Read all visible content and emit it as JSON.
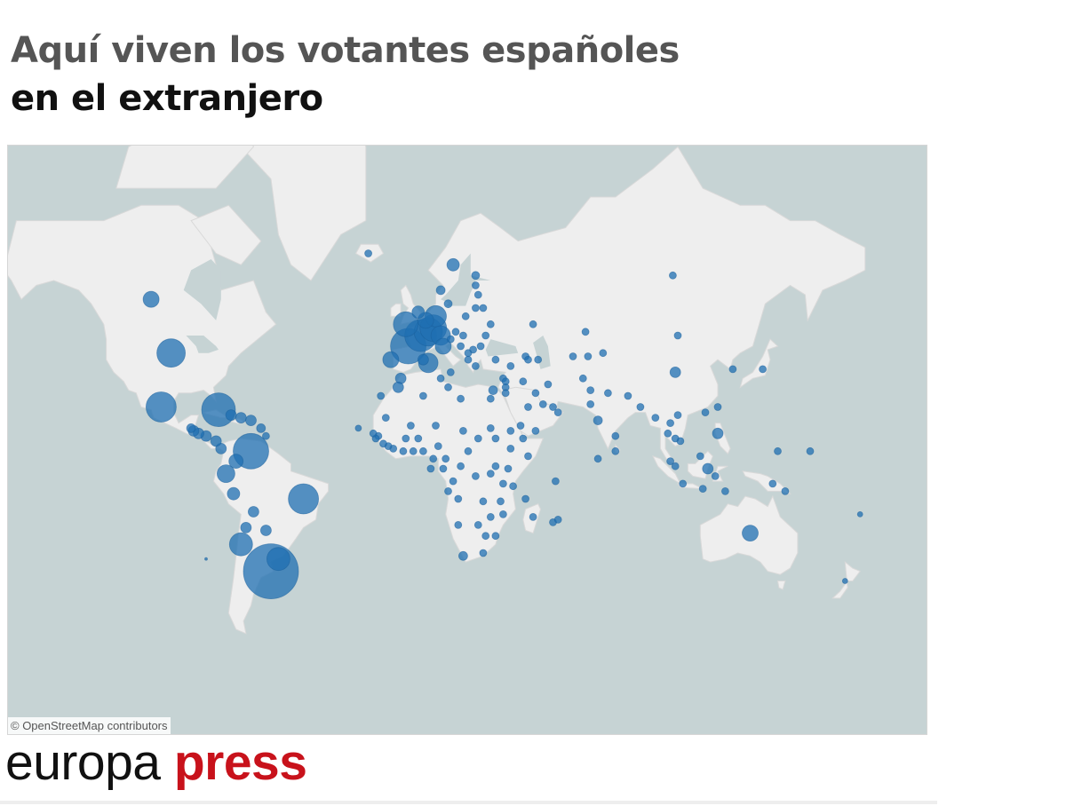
{
  "header": {
    "title_line1": "Aquí viven los votantes españoles",
    "title_line2": "en el extranjero"
  },
  "map": {
    "attribution": "© OpenStreetMap contributors",
    "colors": {
      "water": "#c6d3d4",
      "land": "#eeeeee",
      "bubble": "#1f6fb2"
    },
    "bubbles": [
      {
        "lon": -84,
        "lat": -34,
        "size": 3
      },
      {
        "lon": -58,
        "lat": -38,
        "size": 62
      },
      {
        "lon": -55,
        "lat": -34,
        "size": 26
      },
      {
        "lon": -70,
        "lat": -29,
        "size": 26
      },
      {
        "lon": -68,
        "lat": -23,
        "size": 12
      },
      {
        "lon": -60,
        "lat": -24,
        "size": 12
      },
      {
        "lon": -65,
        "lat": -17,
        "size": 12
      },
      {
        "lon": -73,
        "lat": -10,
        "size": 14
      },
      {
        "lon": -76,
        "lat": -2,
        "size": 20
      },
      {
        "lon": -72,
        "lat": 3,
        "size": 16
      },
      {
        "lon": -66,
        "lat": 7,
        "size": 40
      },
      {
        "lon": -45,
        "lat": -12,
        "size": 34
      },
      {
        "lon": -78,
        "lat": 8,
        "size": 12
      },
      {
        "lon": -80,
        "lat": 11,
        "size": 12
      },
      {
        "lon": -84,
        "lat": 13,
        "size": 12
      },
      {
        "lon": -87,
        "lat": 14,
        "size": 12
      },
      {
        "lon": -89,
        "lat": 15,
        "size": 12
      },
      {
        "lon": -90,
        "lat": 16,
        "size": 10
      },
      {
        "lon": -79,
        "lat": 23,
        "size": 38
      },
      {
        "lon": -74,
        "lat": 21,
        "size": 12
      },
      {
        "lon": -70,
        "lat": 20,
        "size": 12
      },
      {
        "lon": -66,
        "lat": 19,
        "size": 12
      },
      {
        "lon": -62,
        "lat": 16,
        "size": 10
      },
      {
        "lon": -60,
        "lat": 13,
        "size": 8
      },
      {
        "lon": -102,
        "lat": 24,
        "size": 34
      },
      {
        "lon": -98,
        "lat": 42,
        "size": 32
      },
      {
        "lon": -106,
        "lat": 56,
        "size": 18
      },
      {
        "lon": -19,
        "lat": 65,
        "size": 8
      },
      {
        "lon": -4,
        "lat": 50,
        "size": 28
      },
      {
        "lon": -3,
        "lat": 44,
        "size": 40
      },
      {
        "lon": 2,
        "lat": 47,
        "size": 36
      },
      {
        "lon": 5,
        "lat": 48,
        "size": 32
      },
      {
        "lon": 7,
        "lat": 49,
        "size": 30
      },
      {
        "lon": 10,
        "lat": 47,
        "size": 22
      },
      {
        "lon": 8,
        "lat": 52,
        "size": 24
      },
      {
        "lon": 1,
        "lat": 53,
        "size": 14
      },
      {
        "lon": 4,
        "lat": 51,
        "size": 18
      },
      {
        "lon": 11,
        "lat": 44,
        "size": 18
      },
      {
        "lon": 5,
        "lat": 39,
        "size": 22
      },
      {
        "lon": -10,
        "lat": 40,
        "size": 18
      },
      {
        "lon": 3,
        "lat": 40,
        "size": 12
      },
      {
        "lon": -6,
        "lat": 34,
        "size": 12
      },
      {
        "lon": 10,
        "lat": 58,
        "size": 10
      },
      {
        "lon": 15,
        "lat": 63,
        "size": 14
      },
      {
        "lon": 24,
        "lat": 61,
        "size": 9
      },
      {
        "lon": 13,
        "lat": 55,
        "size": 9
      },
      {
        "lon": 20,
        "lat": 52,
        "size": 8
      },
      {
        "lon": 16,
        "lat": 48,
        "size": 8
      },
      {
        "lon": 19,
        "lat": 47,
        "size": 8
      },
      {
        "lon": 14,
        "lat": 46,
        "size": 8
      },
      {
        "lon": 26,
        "lat": 44,
        "size": 8
      },
      {
        "lon": 23,
        "lat": 43,
        "size": 8
      },
      {
        "lon": 21,
        "lat": 42,
        "size": 8
      },
      {
        "lon": 28,
        "lat": 47,
        "size": 8
      },
      {
        "lon": 24,
        "lat": 54,
        "size": 8
      },
      {
        "lon": 25,
        "lat": 57,
        "size": 8
      },
      {
        "lon": 24,
        "lat": 59,
        "size": 8
      },
      {
        "lon": 21,
        "lat": 40,
        "size": 8
      },
      {
        "lon": 24,
        "lat": 38,
        "size": 8
      },
      {
        "lon": 30,
        "lat": 50,
        "size": 8
      },
      {
        "lon": 27,
        "lat": 54,
        "size": 8
      },
      {
        "lon": 14,
        "lat": 36,
        "size": 8
      },
      {
        "lon": 18,
        "lat": 44,
        "size": 8
      },
      {
        "lon": 32,
        "lat": 40,
        "size": 8
      },
      {
        "lon": 38,
        "lat": 38,
        "size": 8
      },
      {
        "lon": 35,
        "lat": 34,
        "size": 8
      },
      {
        "lon": 36,
        "lat": 31,
        "size": 8
      },
      {
        "lon": 36,
        "lat": 33,
        "size": 8
      },
      {
        "lon": 44,
        "lat": 41,
        "size": 8
      },
      {
        "lon": 45,
        "lat": 40,
        "size": 8
      },
      {
        "lon": 49,
        "lat": 40,
        "size": 8
      },
      {
        "lon": 43,
        "lat": 33,
        "size": 8
      },
      {
        "lon": 53,
        "lat": 32,
        "size": 8
      },
      {
        "lon": 48,
        "lat": 29,
        "size": 8
      },
      {
        "lon": 45,
        "lat": 24,
        "size": 8
      },
      {
        "lon": 51,
        "lat": 25,
        "size": 8
      },
      {
        "lon": 55,
        "lat": 24,
        "size": 8
      },
      {
        "lon": 57,
        "lat": 22,
        "size": 8
      },
      {
        "lon": 48,
        "lat": 15,
        "size": 8
      },
      {
        "lon": 42,
        "lat": 17,
        "size": 8
      },
      {
        "lon": 36,
        "lat": 29,
        "size": 8
      },
      {
        "lon": 30,
        "lat": 27,
        "size": 8
      },
      {
        "lon": 31,
        "lat": 30,
        "size": 10
      },
      {
        "lon": 30,
        "lat": 16,
        "size": 8
      },
      {
        "lon": 18,
        "lat": 27,
        "size": 8
      },
      {
        "lon": 13,
        "lat": 31,
        "size": 8
      },
      {
        "lon": 10,
        "lat": 34,
        "size": 8
      },
      {
        "lon": 3,
        "lat": 28,
        "size": 8
      },
      {
        "lon": -7,
        "lat": 31,
        "size": 12
      },
      {
        "lon": -14,
        "lat": 28,
        "size": 8
      },
      {
        "lon": -12,
        "lat": 20,
        "size": 8
      },
      {
        "lon": -2,
        "lat": 17,
        "size": 8
      },
      {
        "lon": 8,
        "lat": 17,
        "size": 8
      },
      {
        "lon": 19,
        "lat": 15,
        "size": 8
      },
      {
        "lon": 38,
        "lat": 8,
        "size": 8
      },
      {
        "lon": 45,
        "lat": 5,
        "size": 8
      },
      {
        "lon": 43,
        "lat": 12,
        "size": 8
      },
      {
        "lon": 38,
        "lat": 15,
        "size": 8
      },
      {
        "lon": 37,
        "lat": 0,
        "size": 8
      },
      {
        "lon": 35,
        "lat": -6,
        "size": 8
      },
      {
        "lon": 32,
        "lat": 1,
        "size": 8
      },
      {
        "lon": 30,
        "lat": -2,
        "size": 8
      },
      {
        "lon": 24,
        "lat": -3,
        "size": 8
      },
      {
        "lon": 18,
        "lat": 1,
        "size": 8
      },
      {
        "lon": 12,
        "lat": 4,
        "size": 8
      },
      {
        "lon": 9,
        "lat": 9,
        "size": 8
      },
      {
        "lon": 3,
        "lat": 7,
        "size": 8
      },
      {
        "lon": -1,
        "lat": 7,
        "size": 8
      },
      {
        "lon": -5,
        "lat": 7,
        "size": 8
      },
      {
        "lon": -9,
        "lat": 8,
        "size": 8
      },
      {
        "lon": -11,
        "lat": 9,
        "size": 8
      },
      {
        "lon": -13,
        "lat": 10,
        "size": 8
      },
      {
        "lon": -15,
        "lat": 13,
        "size": 8
      },
      {
        "lon": -16,
        "lat": 12,
        "size": 8
      },
      {
        "lon": -17,
        "lat": 14,
        "size": 8
      },
      {
        "lon": -23,
        "lat": 16,
        "size": 7
      },
      {
        "lon": 1,
        "lat": 12,
        "size": 8
      },
      {
        "lon": -4,
        "lat": 12,
        "size": 8
      },
      {
        "lon": 7,
        "lat": 4,
        "size": 8
      },
      {
        "lon": 11,
        "lat": 0,
        "size": 8
      },
      {
        "lon": 6,
        "lat": 0,
        "size": 8
      },
      {
        "lon": 15,
        "lat": -5,
        "size": 8
      },
      {
        "lon": 13,
        "lat": -9,
        "size": 8
      },
      {
        "lon": 17,
        "lat": -12,
        "size": 8
      },
      {
        "lon": 27,
        "lat": -13,
        "size": 8
      },
      {
        "lon": 34,
        "lat": -13,
        "size": 8
      },
      {
        "lon": 39,
        "lat": -7,
        "size": 8
      },
      {
        "lon": 35,
        "lat": -18,
        "size": 8
      },
      {
        "lon": 30,
        "lat": -19,
        "size": 8
      },
      {
        "lon": 25,
        "lat": -22,
        "size": 8
      },
      {
        "lon": 17,
        "lat": -22,
        "size": 8
      },
      {
        "lon": 28,
        "lat": -26,
        "size": 8
      },
      {
        "lon": 19,
        "lat": -33,
        "size": 10
      },
      {
        "lon": 27,
        "lat": -32,
        "size": 8
      },
      {
        "lon": 32,
        "lat": -26,
        "size": 8
      },
      {
        "lon": 47,
        "lat": -19,
        "size": 8
      },
      {
        "lon": 55,
        "lat": -21,
        "size": 8
      },
      {
        "lon": 57,
        "lat": -20,
        "size": 8
      },
      {
        "lon": 56,
        "lat": -5,
        "size": 8
      },
      {
        "lon": 44,
        "lat": -12,
        "size": 8
      },
      {
        "lon": 21,
        "lat": 7,
        "size": 8
      },
      {
        "lon": 25,
        "lat": 12,
        "size": 8
      },
      {
        "lon": 32,
        "lat": 12,
        "size": 8
      },
      {
        "lon": 68,
        "lat": 48,
        "size": 8
      },
      {
        "lon": 63,
        "lat": 41,
        "size": 8
      },
      {
        "lon": 69,
        "lat": 41,
        "size": 8
      },
      {
        "lon": 75,
        "lat": 42,
        "size": 8
      },
      {
        "lon": 67,
        "lat": 34,
        "size": 8
      },
      {
        "lon": 70,
        "lat": 30,
        "size": 8
      },
      {
        "lon": 77,
        "lat": 29,
        "size": 8
      },
      {
        "lon": 73,
        "lat": 19,
        "size": 10
      },
      {
        "lon": 80,
        "lat": 13,
        "size": 8
      },
      {
        "lon": 80,
        "lat": 7,
        "size": 8
      },
      {
        "lon": 73,
        "lat": 4,
        "size": 8
      },
      {
        "lon": 85,
        "lat": 28,
        "size": 8
      },
      {
        "lon": 90,
        "lat": 24,
        "size": 8
      },
      {
        "lon": 96,
        "lat": 20,
        "size": 8
      },
      {
        "lon": 101,
        "lat": 14,
        "size": 8
      },
      {
        "lon": 105,
        "lat": 21,
        "size": 8
      },
      {
        "lon": 106,
        "lat": 11,
        "size": 8
      },
      {
        "lon": 102,
        "lat": 18,
        "size": 8
      },
      {
        "lon": 104,
        "lat": 12,
        "size": 8
      },
      {
        "lon": 102,
        "lat": 3,
        "size": 8
      },
      {
        "lon": 104,
        "lat": 1,
        "size": 8
      },
      {
        "lon": 107,
        "lat": -6,
        "size": 8
      },
      {
        "lon": 115,
        "lat": -8,
        "size": 8
      },
      {
        "lon": 114,
        "lat": 5,
        "size": 8
      },
      {
        "lon": 121,
        "lat": 14,
        "size": 12
      },
      {
        "lon": 116,
        "lat": 22,
        "size": 8
      },
      {
        "lon": 121,
        "lat": 24,
        "size": 8
      },
      {
        "lon": 117,
        "lat": 0,
        "size": 12
      },
      {
        "lon": 120,
        "lat": -3,
        "size": 8
      },
      {
        "lon": 124,
        "lat": -9,
        "size": 8
      },
      {
        "lon": 104,
        "lat": 36,
        "size": 12
      },
      {
        "lon": 105,
        "lat": 47,
        "size": 8
      },
      {
        "lon": 103,
        "lat": 61,
        "size": 8
      },
      {
        "lon": 127,
        "lat": 37,
        "size": 8
      },
      {
        "lon": 139,
        "lat": 37,
        "size": 8
      },
      {
        "lon": 143,
        "lat": -6,
        "size": 8
      },
      {
        "lon": 145,
        "lat": 7,
        "size": 8
      },
      {
        "lon": 158,
        "lat": 7,
        "size": 8
      },
      {
        "lon": 148,
        "lat": -9,
        "size": 8
      },
      {
        "lon": 134,
        "lat": -25,
        "size": 18
      },
      {
        "lon": 172,
        "lat": -41,
        "size": 6
      },
      {
        "lon": 178,
        "lat": -18,
        "size": 6
      },
      {
        "lon": 47,
        "lat": 50,
        "size": 8
      },
      {
        "lon": 70,
        "lat": 25,
        "size": 8
      }
    ]
  }
}
